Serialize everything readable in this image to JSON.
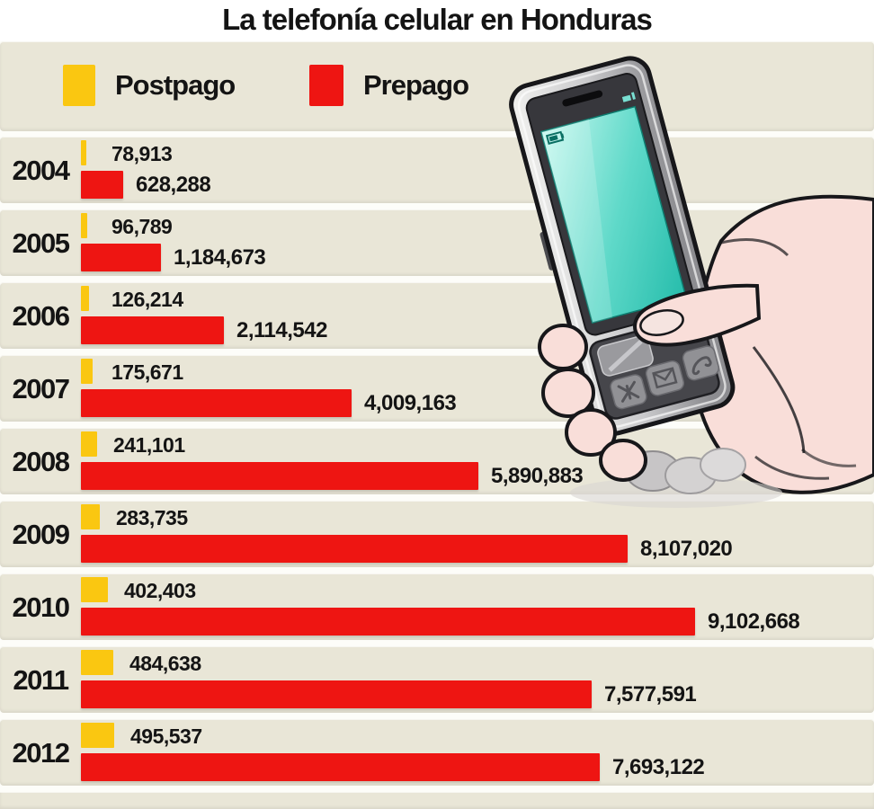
{
  "title": "La telefonía celular en Honduras",
  "legend": [
    {
      "label": "Postpago",
      "color": "#FAC711"
    },
    {
      "label": "Prepago",
      "color": "#EE1512"
    }
  ],
  "chart_data": {
    "type": "bar",
    "orientation": "horizontal",
    "title": "La telefonía celular en Honduras",
    "categories": [
      "2004",
      "2005",
      "2006",
      "2007",
      "2008",
      "2009",
      "2010",
      "2011",
      "2012"
    ],
    "series": [
      {
        "name": "Postpago",
        "color": "#FAC711",
        "values": [
          78913,
          96789,
          126214,
          175671,
          241101,
          283735,
          402403,
          484638,
          495537
        ],
        "labels": [
          "78,913",
          "96,789",
          "126,214",
          "175,671",
          "241,101",
          "283,735",
          "402,403",
          "484,638",
          "495,537"
        ]
      },
      {
        "name": "Prepago",
        "color": "#EE1512",
        "values": [
          628288,
          1184673,
          2114542,
          4009163,
          5890883,
          8107020,
          9102668,
          7577591,
          7693122
        ],
        "labels": [
          "628,288",
          "1,184,673",
          "2,114,542",
          "4,009,163",
          "5,890,883",
          "8,107,020",
          "9,102,668",
          "7,577,591",
          "7,693,122"
        ]
      }
    ],
    "xlim": [
      0,
      9500000
    ],
    "grid": false,
    "legend_position": "top",
    "value_labels": "outside-end"
  },
  "illustration": {
    "name": "hand-holding-cellphone",
    "description": "Illustrated hand holding a mobile phone with a teal screen and keypad"
  },
  "colors": {
    "band": "#E9E6D7",
    "gap": "#FDFDF9",
    "postpago": "#FAC711",
    "prepago": "#EE1512",
    "text": "#141414",
    "phone_screen": "#4ED2C2",
    "hand_skin": "#F9DED9"
  }
}
